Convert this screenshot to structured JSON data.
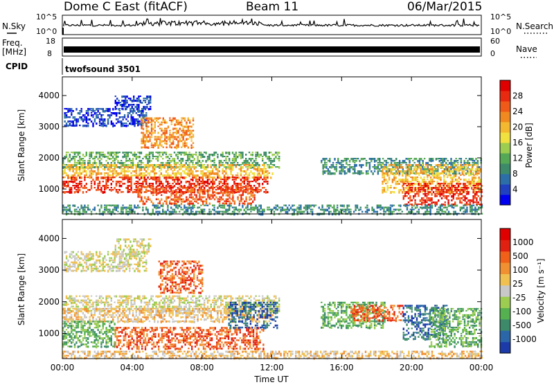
{
  "header": {
    "station": "Dome C East (fitACF)",
    "beam": "Beam 11",
    "date": "06/Mar/2015"
  },
  "summary_panels": {
    "nsky_label": "N.Sky",
    "nsky_ticks": [
      "10^5",
      "10^0"
    ],
    "nsearch_label": "N.Search",
    "nsearch_ticks": [
      "10^5",
      "10^0"
    ],
    "freq_label": "Freq.",
    "freq_unit": "[MHz]",
    "freq_ticks": [
      "18",
      "8"
    ],
    "nave_label": "Nave",
    "nave_ticks": [
      "60",
      "0"
    ],
    "cpid_label": "CPID",
    "cpid_value": "twofsound 3501"
  },
  "chart_data": [
    {
      "type": "heatmap",
      "name": "power-panel",
      "ylabel": "Slant Range [km]",
      "xlabel": "",
      "x_ticks": [
        "00:00",
        "04:00",
        "08:00",
        "12:00",
        "16:00",
        "20:00",
        "00:00"
      ],
      "xlim_hours": [
        0,
        24
      ],
      "y_ticks": [
        1000,
        2000,
        3000,
        4000
      ],
      "ylim": [
        200,
        4600
      ],
      "colorbar": {
        "label": "Power [dB]",
        "ticks": [
          "4",
          "8",
          "12",
          "16",
          "20",
          "24",
          "28"
        ],
        "colors": [
          "#0000ee",
          "#2040c0",
          "#2c6fa8",
          "#3d8a6a",
          "#55a855",
          "#9ccc50",
          "#f0e040",
          "#f4b830",
          "#f08a20",
          "#f05a18",
          "#e82a10",
          "#e00000"
        ]
      },
      "regions": [
        {
          "t0": 0.1,
          "t1": 4.8,
          "r0": 3000,
          "r1": 3600,
          "level": 1
        },
        {
          "t0": 3.0,
          "t1": 5.0,
          "r0": 3500,
          "r1": 4000,
          "level": 1
        },
        {
          "t0": 0.0,
          "t1": 12.4,
          "r0": 1700,
          "r1": 2200,
          "level": 4
        },
        {
          "t0": 0.0,
          "t1": 12.0,
          "r0": 1350,
          "r1": 1800,
          "level": 7
        },
        {
          "t0": 0.0,
          "t1": 11.8,
          "r0": 900,
          "r1": 1400,
          "level": 10
        },
        {
          "t0": 4.3,
          "t1": 11.0,
          "r0": 500,
          "r1": 1100,
          "level": 9
        },
        {
          "t0": 4.5,
          "t1": 7.5,
          "r0": 2300,
          "r1": 3300,
          "level": 8
        },
        {
          "t0": 14.8,
          "t1": 24.0,
          "r0": 1500,
          "r1": 2000,
          "level": 3
        },
        {
          "t0": 18.3,
          "t1": 24.0,
          "r0": 900,
          "r1": 1800,
          "level": 7
        },
        {
          "t0": 19.5,
          "t1": 24.0,
          "r0": 500,
          "r1": 1200,
          "level": 10
        },
        {
          "t0": 0.0,
          "t1": 24.0,
          "r0": 200,
          "r1": 500,
          "level": 3
        }
      ]
    },
    {
      "type": "heatmap",
      "name": "velocity-panel",
      "ylabel": "Slant Range [km]",
      "xlabel": "Time UT",
      "x_ticks": [
        "00:00",
        "04:00",
        "08:00",
        "12:00",
        "16:00",
        "20:00",
        "00:00"
      ],
      "xlim_hours": [
        0,
        24
      ],
      "y_ticks": [
        1000,
        2000,
        3000,
        4000
      ],
      "ylim": [
        200,
        4600
      ],
      "colorbar": {
        "label": "Velocity [m s⁻¹]",
        "ticks": [
          "1000",
          "500",
          "100",
          "25",
          "-25",
          "-100",
          "-500",
          "-1000"
        ],
        "colors": [
          "#1c3aa8",
          "#2a66a8",
          "#3d8a6a",
          "#55b050",
          "#9ccc50",
          "#c8c8c8",
          "#f0c050",
          "#f09030",
          "#f06018",
          "#e02010",
          "#e00000"
        ]
      },
      "regions": [
        {
          "t0": 0.1,
          "t1": 4.8,
          "r0": 3000,
          "r1": 3600,
          "level": 5
        },
        {
          "t0": 3.0,
          "t1": 5.0,
          "r0": 3500,
          "r1": 4000,
          "level": 5
        },
        {
          "t0": 0.0,
          "t1": 12.4,
          "r0": 1700,
          "r1": 2200,
          "level": 5
        },
        {
          "t0": 0.0,
          "t1": 12.0,
          "r0": 1350,
          "r1": 1800,
          "level": 6
        },
        {
          "t0": 0.0,
          "t1": 3.0,
          "r0": 600,
          "r1": 1400,
          "level": 3
        },
        {
          "t0": 3.0,
          "t1": 11.5,
          "r0": 500,
          "r1": 1200,
          "level": 8
        },
        {
          "t0": 5.5,
          "t1": 8.0,
          "r0": 2300,
          "r1": 3300,
          "level": 8
        },
        {
          "t0": 9.5,
          "t1": 12.3,
          "r0": 1200,
          "r1": 2000,
          "level": 1
        },
        {
          "t0": 14.8,
          "t1": 18.5,
          "r0": 1200,
          "r1": 2000,
          "level": 3
        },
        {
          "t0": 16.5,
          "t1": 19.5,
          "r0": 1400,
          "r1": 1900,
          "level": 8
        },
        {
          "t0": 19.5,
          "t1": 22.0,
          "r0": 800,
          "r1": 1900,
          "level": 1
        },
        {
          "t0": 21.0,
          "t1": 24.0,
          "r0": 600,
          "r1": 1800,
          "level": 3
        },
        {
          "t0": 0.0,
          "t1": 24.0,
          "r0": 200,
          "r1": 450,
          "level": 6
        }
      ]
    }
  ]
}
